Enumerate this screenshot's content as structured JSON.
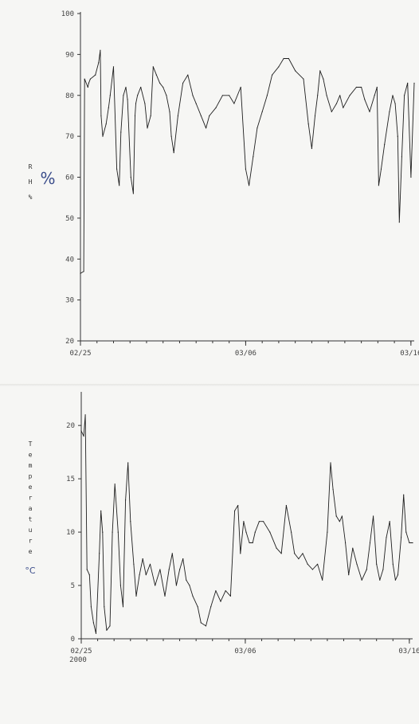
{
  "chart_data": [
    {
      "type": "line",
      "ylabel": "RH %",
      "ylabel_letters": [
        "R",
        "H",
        "%"
      ],
      "unit_mark": "%",
      "ylim": [
        20,
        100
      ],
      "yticks": [
        20,
        30,
        40,
        50,
        60,
        70,
        80,
        90,
        100
      ],
      "xlim": [
        0,
        20.2
      ],
      "xticks": [
        {
          "x": 0,
          "label": "02/25"
        },
        {
          "x": 10,
          "label": "03/06"
        },
        {
          "x": 20,
          "label": "03/16"
        }
      ],
      "x_start_date": "2000-02-25",
      "x_unit": "days",
      "grid": false,
      "series": [
        {
          "x": [
            0,
            0.2,
            0.25,
            0.45,
            0.5,
            0.6,
            0.9,
            1.1,
            1.2,
            1.25,
            1.35,
            1.55,
            1.7,
            1.8,
            2.0,
            2.2,
            2.35,
            2.45,
            2.6,
            2.75,
            2.85,
            3.05,
            3.2,
            3.3,
            3.35,
            3.45,
            3.65,
            3.9,
            4.05,
            4.25,
            4.4,
            4.6,
            4.8,
            5.0,
            5.2,
            5.4,
            5.5,
            5.65,
            5.9,
            6.2,
            6.5,
            6.8,
            7.0,
            7.3,
            7.6,
            7.8,
            8.2,
            8.6,
            9.0,
            9.3,
            9.7,
            10.0,
            10.2,
            10.45,
            10.7,
            11.0,
            11.3,
            11.6,
            12.0,
            12.3,
            12.6,
            13.0,
            13.5,
            13.8,
            14.0,
            14.2,
            14.35,
            14.5,
            14.7,
            14.9,
            15.2,
            15.5,
            15.7,
            15.9,
            16.3,
            16.7,
            17.0,
            17.2,
            17.5,
            17.8,
            17.95,
            18.05,
            18.2,
            18.4,
            18.7,
            18.9,
            19.05,
            19.2,
            19.3,
            19.45,
            19.6,
            19.8,
            20.0,
            20.2
          ],
          "values": [
            36.5,
            37,
            84,
            82,
            83,
            84,
            85,
            88,
            91,
            75,
            70,
            73,
            77,
            80,
            87,
            62,
            58,
            71,
            80,
            82,
            79,
            60,
            56,
            75,
            78,
            80,
            82,
            78,
            72,
            75,
            87,
            85,
            83,
            82,
            80,
            76,
            70,
            66,
            75,
            83,
            85,
            80,
            78,
            75,
            72,
            75,
            77,
            80,
            80,
            78,
            82,
            62,
            58,
            65,
            72,
            76,
            80,
            85,
            87,
            89,
            89,
            86,
            84,
            73,
            67,
            75,
            80,
            86,
            84,
            80,
            76,
            78,
            80,
            77,
            80,
            82,
            82,
            79,
            76,
            80,
            82,
            58,
            62,
            68,
            76,
            80,
            78,
            70,
            49,
            65,
            80,
            83,
            60,
            83
          ]
        }
      ]
    },
    {
      "type": "line",
      "ylabel": "Temperature °C",
      "ylabel_letters": [
        "T",
        "e",
        "m",
        "p",
        "e",
        "r",
        "a",
        "t",
        "u",
        "r",
        "e"
      ],
      "unit_mark": "°C",
      "ylim": [
        0,
        23
      ],
      "yticks": [
        0,
        5,
        10,
        15,
        20
      ],
      "xlim": [
        0,
        20.2
      ],
      "xticks": [
        {
          "x": 0,
          "label": "02/25",
          "sub": "2000"
        },
        {
          "x": 10,
          "label": "03/06"
        },
        {
          "x": 20,
          "label": "03/16"
        }
      ],
      "grid": false,
      "series": [
        {
          "x": [
            0,
            0.15,
            0.25,
            0.35,
            0.5,
            0.6,
            0.75,
            0.9,
            1.1,
            1.2,
            1.3,
            1.4,
            1.55,
            1.75,
            1.9,
            2.05,
            2.25,
            2.4,
            2.55,
            2.7,
            2.85,
            3.0,
            3.2,
            3.35,
            3.55,
            3.75,
            3.95,
            4.2,
            4.5,
            4.8,
            5.1,
            5.35,
            5.55,
            5.8,
            6.0,
            6.2,
            6.4,
            6.6,
            6.8,
            7.1,
            7.3,
            7.6,
            7.9,
            8.2,
            8.5,
            8.8,
            9.1,
            9.35,
            9.55,
            9.7,
            9.9,
            10.05,
            10.25,
            10.45,
            10.6,
            10.85,
            11.1,
            11.5,
            11.9,
            12.2,
            12.5,
            12.8,
            13.0,
            13.25,
            13.5,
            13.8,
            14.1,
            14.4,
            14.7,
            15.0,
            15.2,
            15.35,
            15.55,
            15.75,
            15.9,
            16.1,
            16.3,
            16.55,
            16.8,
            17.1,
            17.4,
            17.6,
            17.8,
            18.0,
            18.2,
            18.4,
            18.6,
            18.8,
            19.0,
            19.15,
            19.3,
            19.5,
            19.65,
            19.8,
            20.0,
            20.2
          ],
          "values": [
            19.5,
            19,
            21,
            6.5,
            6,
            3,
            1.5,
            0.5,
            8,
            12,
            10,
            3,
            0.8,
            1.2,
            10,
            14.5,
            10,
            5,
            3,
            13,
            16.5,
            11,
            7,
            4,
            6,
            7.5,
            6,
            7,
            5,
            6.5,
            4,
            6.5,
            8,
            5,
            6.5,
            7.5,
            5.5,
            5,
            4,
            3,
            1.5,
            1.2,
            3,
            4.5,
            3.5,
            4.5,
            4,
            12,
            12.5,
            8,
            11,
            10,
            9,
            9,
            10,
            11,
            11,
            10,
            8.5,
            8,
            12.5,
            10,
            8,
            7.5,
            8,
            7,
            6.5,
            7,
            5.5,
            10,
            16.5,
            14,
            11.5,
            11,
            11.5,
            9,
            6,
            8.5,
            7,
            5.5,
            6.5,
            9,
            11.5,
            7,
            5.5,
            6.5,
            9.5,
            11,
            7,
            5.5,
            6,
            9.5,
            13.5,
            10,
            9,
            9
          ]
        }
      ]
    }
  ]
}
